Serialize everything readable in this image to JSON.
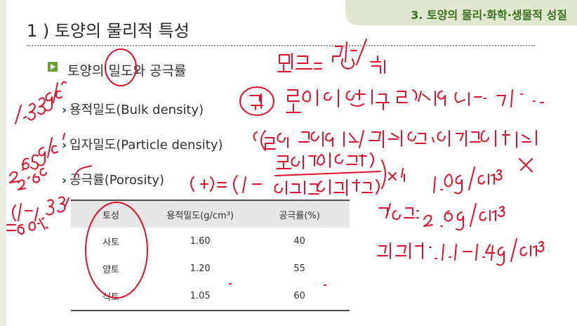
{
  "header": {
    "chapter_tab": "3. 토양의 물리·화학·생물적 성질"
  },
  "slide": {
    "title": "1 ) 토양의 물리적 특성",
    "heading": "토양의 밀도와 공극률",
    "items": [
      {
        "label": "용적밀도(Bulk density)"
      },
      {
        "label": "입자밀도(Particle density)"
      },
      {
        "label": "공극률(Porosity)"
      }
    ]
  },
  "table": {
    "headers": [
      "토성",
      "용적밀도(g/cm³)",
      "공극률(%)"
    ],
    "rows": [
      [
        "사토",
        "1.60",
        "40"
      ],
      [
        "양토",
        "1.20",
        "55"
      ],
      [
        "식토",
        "1.05",
        "60"
      ]
    ]
  },
  "colors": {
    "accent_green": "#6aa33a",
    "tab_bg": "#dfe8cf",
    "ink_red": "#e0102b",
    "chevron_navy": "#1e3d6e"
  }
}
